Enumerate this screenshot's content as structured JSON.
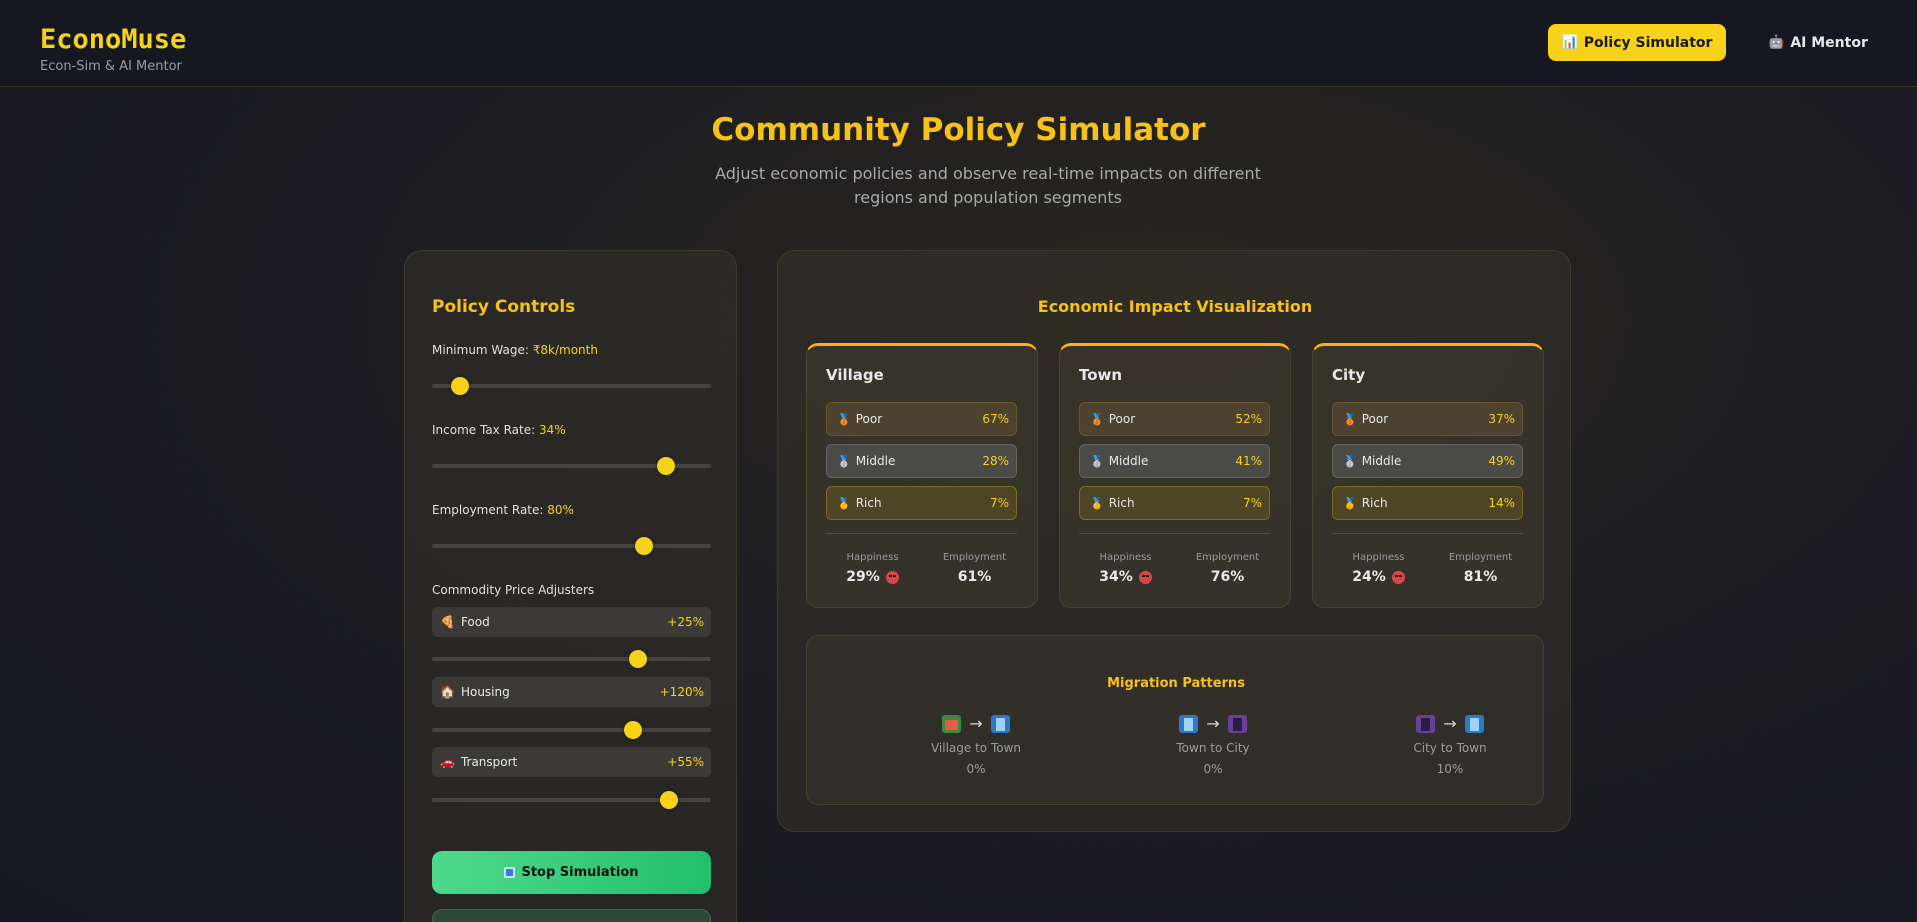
{
  "header": {
    "brand_title": "EconoMuse",
    "brand_subtitle": "Econ-Sim & AI Mentor",
    "nav": [
      {
        "label": "Policy Simulator",
        "icon": "bar-chart-icon",
        "active": true
      },
      {
        "label": "AI Mentor",
        "icon": "robot-icon",
        "active": false
      }
    ]
  },
  "hero": {
    "title": "Community Policy Simulator",
    "subtitle": "Adjust economic policies and observe real-time impacts on different regions and population segments"
  },
  "controls": {
    "title": "Policy Controls",
    "min_wage_label": "Minimum Wage:",
    "min_wage_value": "₹8k/month",
    "min_wage_level": 0.1,
    "tax_label": "Income Tax Rate:",
    "tax_value": "34%",
    "tax_level": 0.84,
    "employment_label": "Employment Rate:",
    "employment_value": "80%",
    "employment_level": 0.76,
    "commodity_title": "Commodity Price Adjusters",
    "commodities": [
      {
        "name": "Food",
        "icon": "pizza-icon",
        "value": "+25%",
        "level": 0.74
      },
      {
        "name": "Housing",
        "icon": "house-icon",
        "value": "+120%",
        "level": 0.72
      },
      {
        "name": "Transport",
        "icon": "car-icon",
        "value": "+55%",
        "level": 0.85
      }
    ],
    "stop_label": "Stop Simulation",
    "stop_icon": "stop-icon"
  },
  "viz": {
    "title": "Economic Impact Visualization",
    "segment_labels": {
      "poor": "Poor",
      "middle": "Middle",
      "rich": "Rich"
    },
    "happiness_label": "Happiness",
    "employment_label": "Employment",
    "regions": [
      {
        "name": "Village",
        "poor": "67%",
        "middle": "28%",
        "rich": "7%",
        "happiness": "29%",
        "employment": "61%"
      },
      {
        "name": "Town",
        "poor": "52%",
        "middle": "41%",
        "rich": "7%",
        "happiness": "34%",
        "employment": "76%"
      },
      {
        "name": "City",
        "poor": "37%",
        "middle": "49%",
        "rich": "14%",
        "happiness": "24%",
        "employment": "81%"
      }
    ],
    "migration": {
      "title": "Migration Patterns",
      "arrow": "→",
      "items": [
        {
          "label": "Village to Town",
          "value": "0%"
        },
        {
          "label": "Town to City",
          "value": "0%"
        },
        {
          "label": "City to Town",
          "value": "10%"
        }
      ]
    }
  }
}
